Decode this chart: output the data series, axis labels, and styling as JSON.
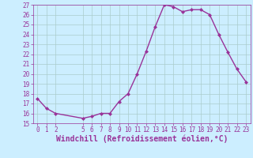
{
  "x": [
    0,
    1,
    2,
    5,
    6,
    7,
    8,
    9,
    10,
    11,
    12,
    13,
    14,
    15,
    16,
    17,
    18,
    19,
    20,
    21,
    22,
    23
  ],
  "y": [
    17.5,
    16.5,
    16.0,
    15.5,
    15.7,
    16.0,
    16.0,
    17.2,
    18.0,
    20.0,
    22.3,
    24.8,
    27.0,
    26.8,
    26.3,
    26.5,
    26.5,
    26.0,
    24.0,
    22.2,
    20.5,
    19.2
  ],
  "line_color": "#993399",
  "marker": "D",
  "marker_size": 2.0,
  "bg_color": "#cceeff",
  "grid_color": "#aacccc",
  "xlabel": "Windchill (Refroidissement éolien,°C)",
  "ylim": [
    15,
    27
  ],
  "yticks": [
    15,
    16,
    17,
    18,
    19,
    20,
    21,
    22,
    23,
    24,
    25,
    26,
    27
  ],
  "xticks": [
    0,
    1,
    2,
    5,
    6,
    7,
    8,
    9,
    10,
    11,
    12,
    13,
    14,
    15,
    16,
    17,
    18,
    19,
    20,
    21,
    22,
    23
  ],
  "xlim": [
    -0.5,
    23.5
  ],
  "tick_color": "#993399",
  "tick_fontsize": 5.5,
  "xlabel_fontsize": 7.0,
  "line_width": 1.0
}
